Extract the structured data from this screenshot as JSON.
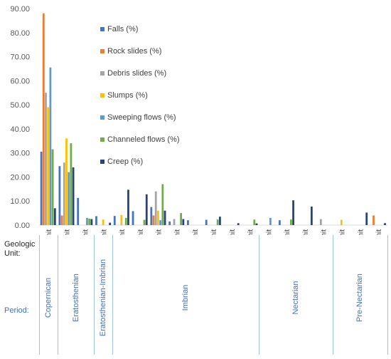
{
  "left_labels": {
    "geologic": "Geologic",
    "unit": "Unit:",
    "period": "Period:"
  },
  "chart_data": {
    "type": "bar",
    "ylim": [
      0,
      90
    ],
    "yticks": [
      "0.00",
      "10.00",
      "20.00",
      "30.00",
      "40.00",
      "50.00",
      "60.00",
      "70.00",
      "80.00",
      "90.00"
    ],
    "grid": false,
    "legend_position": "inside-upper-left",
    "categories": [
      "Crater Unit",
      "Crater Unit",
      "Mare Unit",
      "Plateau Unit",
      "Lower Crater Unit",
      "Upper Crater Unit",
      "Upper Mare Unit",
      "Crater Undivided Unit",
      "Dark Mantling Unit",
      "Plains Unit",
      "Mare Dome Unit",
      "Terra Unit",
      "Nectaris Janssen Formation Unit",
      "Crater Unit",
      "Basin Massif Unit",
      "Basin Undivided Unit",
      "Terra Unit",
      "Crater Unit",
      "Basin Massif Unit"
    ],
    "series": [
      {
        "name": "Falls (%)",
        "color": "#4472c4",
        "values": [
          30.5,
          24.5,
          11.3,
          3.7,
          3.8,
          5.8,
          7.5,
          1.5,
          2.0,
          2.2,
          0,
          0,
          0,
          2.0,
          0,
          0,
          0,
          0,
          0
        ]
      },
      {
        "name": "Rock slides (%)",
        "color": "#ed7d31",
        "values": [
          88.0,
          4.0,
          0,
          0,
          0,
          0,
          4.0,
          0,
          0,
          0,
          0,
          0,
          0,
          0,
          0,
          0,
          0,
          0,
          4.0
        ]
      },
      {
        "name": "Debris slides (%)",
        "color": "#a5a5a5",
        "values": [
          55.0,
          26.0,
          0,
          0,
          0,
          0,
          14.0,
          2.5,
          0,
          0,
          0,
          0,
          0,
          0,
          0,
          2.5,
          0,
          0,
          0
        ]
      },
      {
        "name": "Slumps (%)",
        "color": "#ffc000",
        "values": [
          49.0,
          36.0,
          0,
          2.3,
          4.2,
          0,
          6.0,
          0,
          0,
          0,
          0,
          0,
          0,
          0,
          0,
          0,
          2.2,
          0,
          0
        ]
      },
      {
        "name": "Sweeping flows (%)",
        "color": "#5b9bd5",
        "values": [
          65.5,
          22.0,
          3.0,
          0,
          0,
          0,
          2.0,
          0,
          0,
          0,
          0,
          0,
          3.0,
          0,
          0,
          0,
          0,
          0,
          0
        ]
      },
      {
        "name": "Channeled flows (%)",
        "color": "#70ad47",
        "values": [
          31.5,
          34.0,
          2.7,
          0,
          3.0,
          2.2,
          17.0,
          5.0,
          0,
          2.3,
          0,
          2.3,
          0,
          2.3,
          0,
          0,
          0,
          0,
          0
        ]
      },
      {
        "name": "Creep (%)",
        "color": "#264478",
        "values": [
          7.0,
          24.0,
          2.5,
          1.0,
          14.7,
          12.8,
          6.0,
          2.5,
          0,
          3.5,
          0.8,
          0.7,
          0,
          10.3,
          7.7,
          0,
          0,
          5.2,
          0.8
        ]
      }
    ],
    "periods": [
      {
        "name": "Copernican",
        "start": 0,
        "end": 0
      },
      {
        "name": "Eratosthenian",
        "start": 1,
        "end": 2
      },
      {
        "name": "Eratosthenian-Imbrian",
        "start": 3,
        "end": 3
      },
      {
        "name": "Imbrian",
        "start": 4,
        "end": 11
      },
      {
        "name": "Nectarian",
        "start": 12,
        "end": 15
      },
      {
        "name": "Pre-Nectarian",
        "start": 16,
        "end": 18
      }
    ]
  }
}
